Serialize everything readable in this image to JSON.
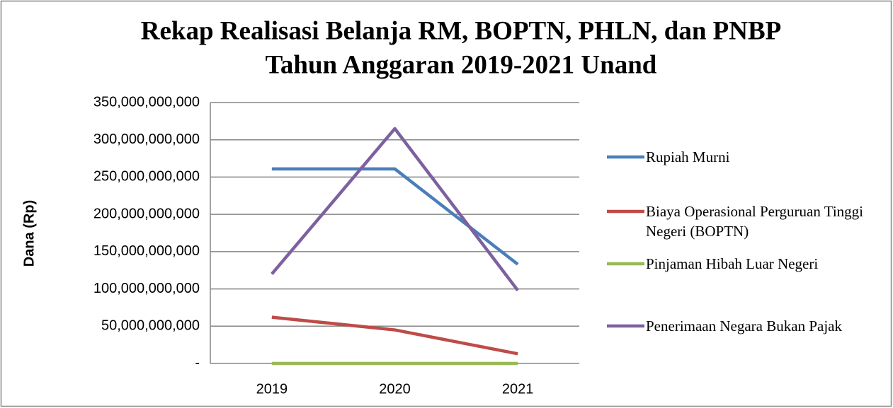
{
  "chart_data": {
    "type": "line",
    "title": "Rekap Realisasi Belanja RM, BOPTN, PHLN, dan PNBP",
    "subtitle": "Tahun Anggaran 2019-2021 Unand",
    "y_label": "Dana (Rp)",
    "categories": [
      "2019",
      "2020",
      "2021"
    ],
    "series": [
      {
        "name": "Rupiah Murni",
        "color": "#4a7ebb",
        "values": [
          261000000000,
          261000000000,
          133000000000
        ]
      },
      {
        "name": "Biaya Operasional Perguruan Tinggi Negeri (BOPTN)",
        "color": "#be4b48",
        "values": [
          62000000000,
          45000000000,
          13000000000
        ]
      },
      {
        "name": "Pinjaman Hibah Luar Negeri",
        "color": "#98b954",
        "values": [
          0,
          0,
          0
        ]
      },
      {
        "name": "Penerimaan Negara Bukan Pajak",
        "color": "#7d60a0",
        "values": [
          120000000000,
          315000000000,
          98000000000
        ]
      }
    ],
    "ylim": [
      0,
      350000000000
    ],
    "yticks": [
      {
        "value": 0,
        "label": "-"
      },
      {
        "value": 50000000000,
        "label": "50,000,000,000"
      },
      {
        "value": 100000000000,
        "label": "100,000,000,000"
      },
      {
        "value": 150000000000,
        "label": "150,000,000,000"
      },
      {
        "value": 200000000000,
        "label": "200,000,000,000"
      },
      {
        "value": 250000000000,
        "label": "250,000,000,000"
      },
      {
        "value": 300000000000,
        "label": "300,000,000,000"
      },
      {
        "value": 350000000000,
        "label": "350,000,000,000"
      }
    ],
    "grid": true,
    "legend": "right"
  }
}
